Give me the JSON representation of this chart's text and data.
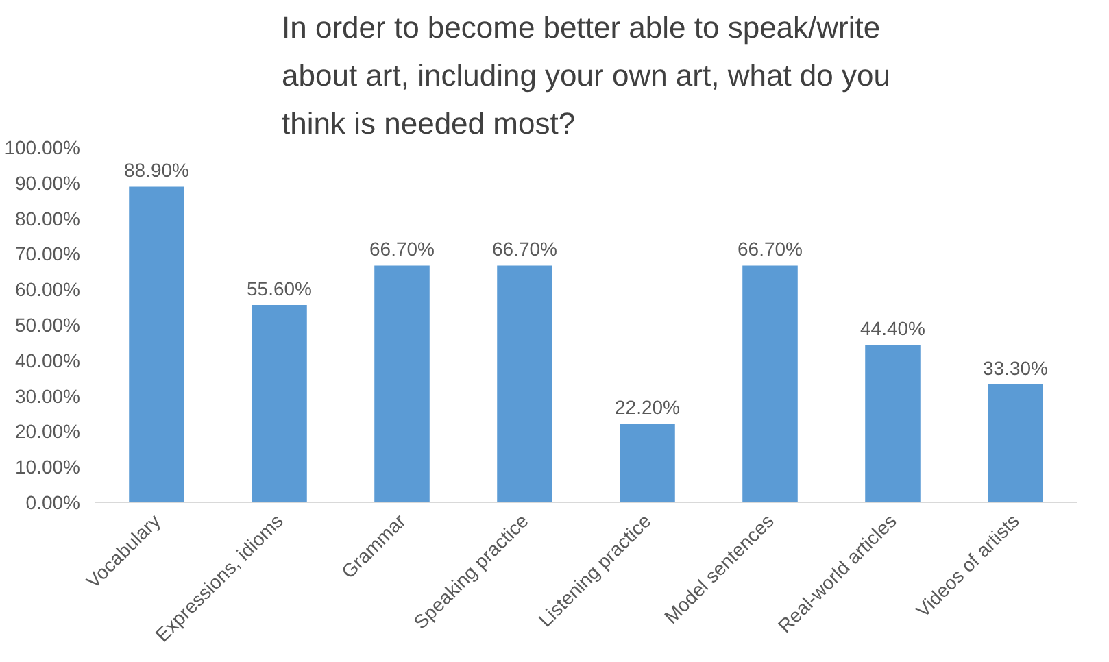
{
  "chart_data": {
    "type": "bar",
    "title": "In order to become better able to speak/write about art, including your own art, what do you think is needed most?",
    "categories": [
      "Vocabulary",
      "Expressions, idioms",
      "Grammar",
      "Speaking practice",
      "Listening practice",
      "Model sentences",
      "Real-world articles",
      "Videos of artists"
    ],
    "values": [
      88.9,
      55.6,
      66.7,
      66.7,
      22.2,
      66.7,
      44.4,
      33.3
    ],
    "value_labels": [
      "88.90%",
      "55.60%",
      "66.70%",
      "66.70%",
      "22.20%",
      "66.70%",
      "44.40%",
      "33.30%"
    ],
    "color": "#5b9bd5",
    "ylim": [
      0,
      100
    ],
    "yticks": [
      {
        "value": 0,
        "label": "0.00%"
      },
      {
        "value": 10,
        "label": "10.00%"
      },
      {
        "value": 20,
        "label": "20.00%"
      },
      {
        "value": 30,
        "label": "30.00%"
      },
      {
        "value": 40,
        "label": "40.00%"
      },
      {
        "value": 50,
        "label": "50.00%"
      },
      {
        "value": 60,
        "label": "60.00%"
      },
      {
        "value": 70,
        "label": "70.00%"
      },
      {
        "value": 80,
        "label": "80.00%"
      },
      {
        "value": 90,
        "label": "90.00%"
      },
      {
        "value": 100,
        "label": "100.00%"
      }
    ],
    "grid": false
  }
}
